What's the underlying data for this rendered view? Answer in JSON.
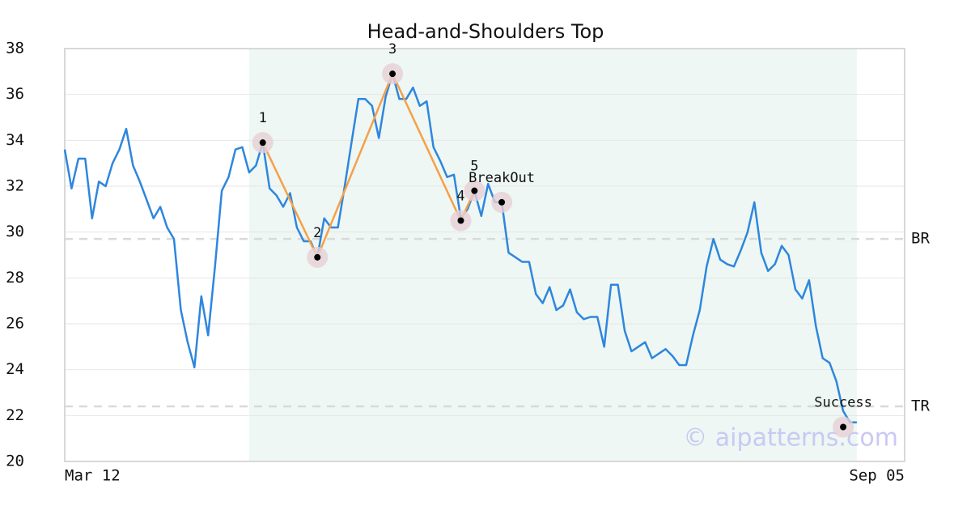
{
  "chart_data": {
    "type": "line",
    "title": "Head-and-Shoulders Top",
    "watermark": "© aipatterns.com",
    "categories": [
      "Mar 12",
      null,
      null,
      null,
      null,
      null,
      null,
      null,
      null,
      null,
      null,
      null,
      null,
      null,
      null,
      null,
      null,
      null,
      null,
      null,
      null,
      null,
      null,
      null,
      null,
      null,
      null,
      null,
      null,
      null,
      null,
      null,
      null,
      null,
      null,
      null,
      null,
      null,
      null,
      null,
      null,
      null,
      null,
      null,
      null,
      null,
      null,
      null,
      null,
      null,
      null,
      null,
      null,
      null,
      null,
      null,
      null,
      null,
      null,
      null,
      null,
      null,
      null,
      null,
      null,
      null,
      null,
      null,
      null,
      null,
      null,
      null,
      null,
      null,
      null,
      null,
      null,
      null,
      null,
      null,
      null,
      null,
      null,
      null,
      null,
      null,
      null,
      null,
      null,
      null,
      null,
      null,
      null,
      null,
      null,
      null,
      null,
      null,
      null,
      null,
      null,
      null,
      null,
      null,
      null,
      null,
      null,
      null,
      null,
      null,
      null,
      null,
      null,
      null,
      null,
      null,
      null,
      null,
      null,
      null,
      null,
      null,
      null,
      "Sep 05"
    ],
    "series": [
      {
        "color": "#2e86de",
        "values": [
          33.6,
          31.9,
          33.2,
          33.2,
          30.6,
          32.2,
          32.0,
          33.0,
          33.6,
          34.5,
          32.9,
          32.2,
          31.4,
          30.6,
          31.1,
          30.2,
          29.7,
          26.6,
          25.2,
          24.1,
          27.2,
          25.5,
          28.5,
          31.8,
          32.4,
          33.6,
          33.7,
          32.6,
          32.9,
          33.9,
          31.9,
          31.6,
          31.1,
          31.7,
          30.2,
          29.6,
          29.6,
          28.9,
          30.6,
          30.2,
          30.2,
          32.0,
          33.9,
          35.8,
          35.8,
          35.5,
          34.1,
          35.9,
          36.9,
          35.8,
          35.8,
          36.3,
          35.5,
          35.7,
          33.7,
          33.1,
          32.4,
          32.5,
          30.6,
          31.0,
          31.8,
          30.7,
          32.1,
          31.3,
          31.3,
          29.1,
          28.9,
          28.7,
          28.7,
          27.3,
          26.9,
          27.6,
          26.6,
          26.8,
          27.5,
          26.5,
          26.2,
          26.3,
          26.3,
          25.0,
          27.7,
          27.7,
          25.7,
          24.8,
          25.0,
          25.2,
          24.5,
          24.7,
          24.9,
          24.6,
          24.2,
          24.2,
          25.5,
          26.6,
          28.5,
          29.7,
          28.8,
          28.6,
          28.5,
          29.2,
          30.0,
          31.3,
          29.1,
          28.3,
          28.6,
          29.4,
          29.0,
          27.5,
          27.1,
          27.9,
          25.9,
          24.5,
          24.3,
          23.5,
          22.2,
          21.7,
          21.7,
          null,
          null,
          null,
          null,
          null,
          null,
          null
        ]
      }
    ],
    "pattern": {
      "color": "#f5a04a",
      "x": [
        29,
        37,
        48,
        58,
        60
      ],
      "values": [
        33.9,
        28.9,
        36.9,
        30.5,
        31.8
      ],
      "labels": [
        "1",
        "2",
        "3",
        "4",
        "5"
      ]
    },
    "markers": {
      "x": [
        64,
        114
      ],
      "values": [
        31.3,
        21.5
      ],
      "labels": [
        "BreakOut",
        "Success"
      ]
    },
    "highlight": {
      "start": 27,
      "end": 116,
      "color": "#eef7f3"
    },
    "hlines": [
      {
        "label": "BR",
        "value": 29.7
      },
      {
        "label": "TR",
        "value": 22.4
      }
    ],
    "ylim": [
      20,
      38
    ],
    "yticks": [
      20,
      22,
      24,
      26,
      28,
      30,
      32,
      34,
      36,
      38
    ],
    "grid": true
  }
}
